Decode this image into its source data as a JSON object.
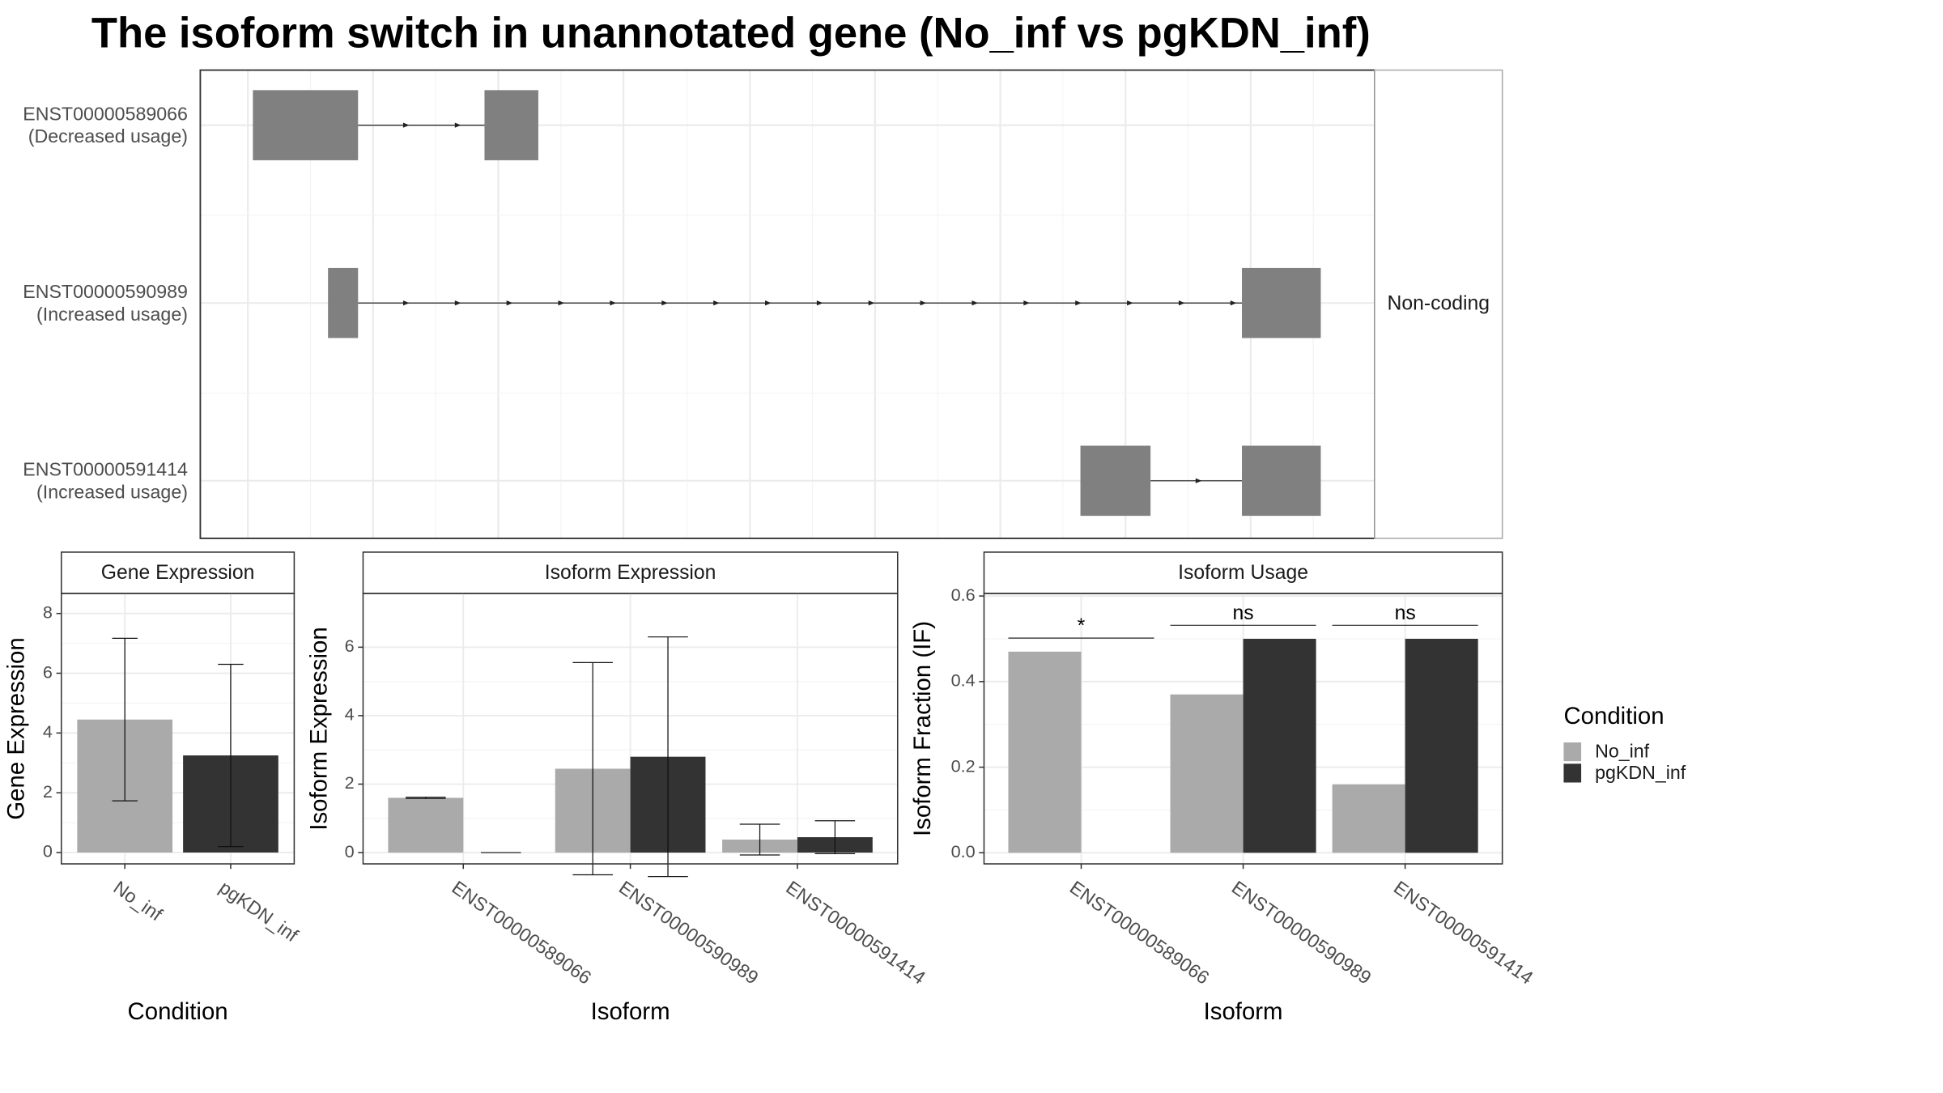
{
  "title": "The isoform switch in unannotated gene (No_inf vs pgKDN_inf)",
  "legend": {
    "title": "Condition"
  },
  "chart_data": [
    {
      "type": "structure",
      "strip": "Non-coding",
      "transcripts": [
        {
          "id": "ENST00000589066",
          "usage": "(Decreased usage)"
        },
        {
          "id": "ENST00000590989",
          "usage": "(Increased usage)"
        },
        {
          "id": "ENST00000591414",
          "usage": "(Increased usage)"
        }
      ]
    },
    {
      "type": "bar",
      "title": "Gene Expression",
      "xlabel": "Condition",
      "ylabel": "Gene Expression",
      "categories": [
        "No_inf",
        "pgKDN_inf"
      ],
      "values": [
        4.45,
        3.25
      ],
      "errors": [
        2.72,
        3.05
      ],
      "colors": [
        "#aaaaaa",
        "#333333"
      ],
      "ylim": [
        -0.38,
        8.67
      ],
      "yticks": [
        0,
        2,
        4,
        6,
        8
      ],
      "grid": true
    },
    {
      "type": "bar",
      "title": "Isoform Expression",
      "xlabel": "Isoform",
      "ylabel": "Isoform Expression",
      "categories": [
        "ENST00000589066",
        "ENST00000590989",
        "ENST00000591414"
      ],
      "series": [
        {
          "name": "No_inf",
          "color": "#aaaaaa",
          "values": [
            1.6,
            2.45,
            0.38
          ],
          "errors": [
            0.02,
            3.1,
            0.45
          ]
        },
        {
          "name": "pgKDN_inf",
          "color": "#333333",
          "values": [
            0,
            2.8,
            0.45
          ],
          "errors": [
            0,
            3.5,
            0.48
          ]
        }
      ],
      "ylim": [
        -0.33,
        7.57
      ],
      "yticks": [
        0,
        2,
        4,
        6
      ],
      "grid": true
    },
    {
      "type": "bar",
      "title": "Isoform Usage",
      "xlabel": "Isoform",
      "ylabel": "Isoform Fraction (IF)",
      "categories": [
        "ENST00000589066",
        "ENST00000590989",
        "ENST00000591414"
      ],
      "series": [
        {
          "name": "No_inf",
          "color": "#aaaaaa",
          "values": [
            0.47,
            0.37,
            0.16
          ]
        },
        {
          "name": "pgKDN_inf",
          "color": "#333333",
          "values": [
            0,
            0.5,
            0.5
          ]
        }
      ],
      "annotations": [
        "*",
        "ns",
        "ns"
      ],
      "ylim": [
        -0.026,
        0.606
      ],
      "yticks": [
        {
          "value": 0,
          "label": "0.0"
        },
        0.2,
        0.4,
        0.6
      ],
      "grid": true
    }
  ]
}
